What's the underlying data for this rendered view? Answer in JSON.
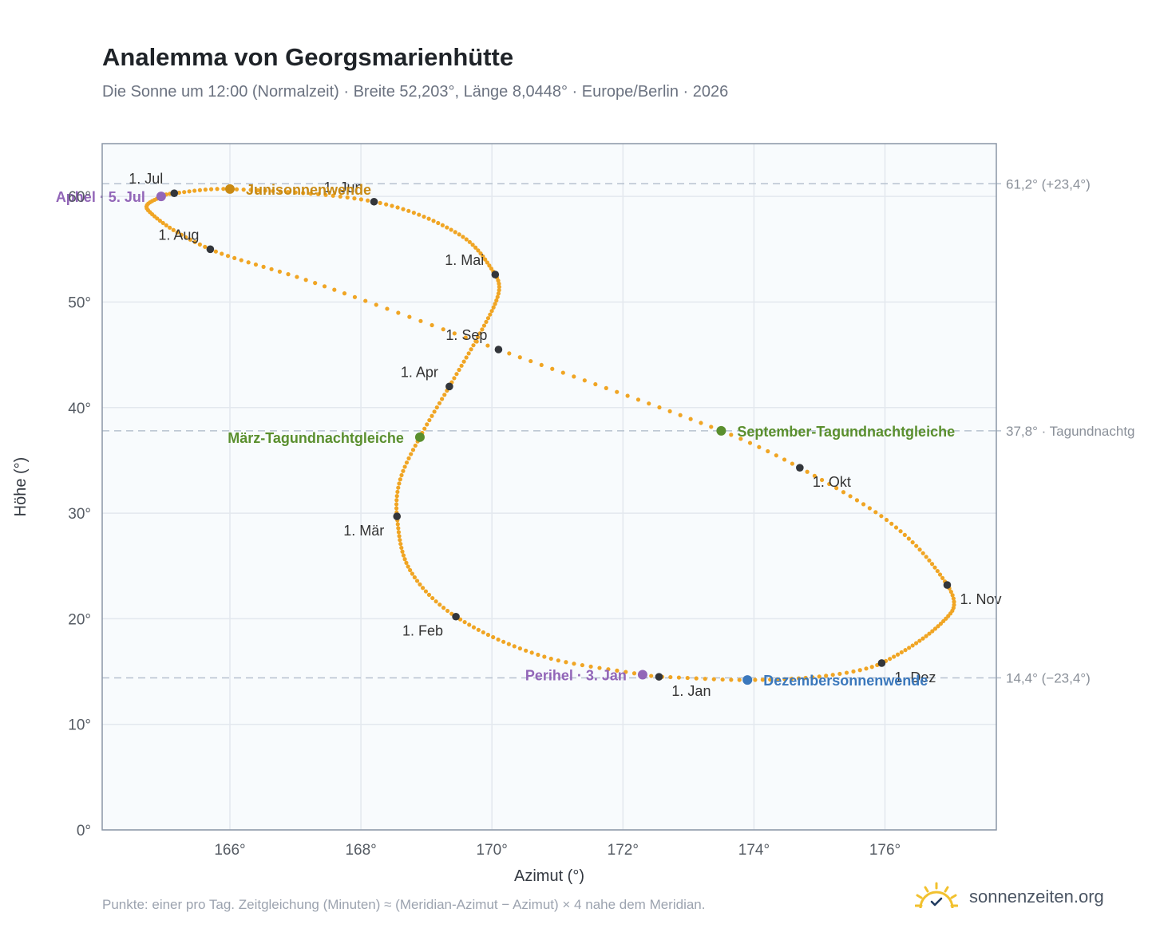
{
  "title": "Analemma von Georgsmarienhütte",
  "subtitle": "Die Sonne um 12:00 (Normalzeit) · Breite 52,203°, Länge 8,0448° · Europe/Berlin · 2026",
  "footnote": "Punkte: einer pro Tag. Zeitgleichung (Minuten) ≈ (Meridian-Azimut − Azimut) × 4 nahe dem Meridian.",
  "brand": {
    "text": "sonnenzeiten.org",
    "icon": "sun-check-logo-icon"
  },
  "colors": {
    "curve": "#f0a524",
    "month_marker": "#33363b",
    "solstice_june": "#c98a14",
    "equinox": "#5a8f2e",
    "solstice_december": "#3b78bc",
    "apsis": "#9266b8",
    "reference_line": "#b7c2cf",
    "plot_background": "#f8fbfd",
    "grid": "#e3e8ee",
    "frame": "#8a96a6"
  },
  "chart_data": {
    "type": "scatter",
    "title": "Analemma von Georgsmarienhütte",
    "xlabel": "Azimut (°)",
    "ylabel": "Höhe (°)",
    "xlim": [
      164.05,
      177.7
    ],
    "ylim": [
      0,
      65
    ],
    "x_ticks": [
      {
        "value": 166,
        "label": "166°"
      },
      {
        "value": 168,
        "label": "168°"
      },
      {
        "value": 170,
        "label": "170°"
      },
      {
        "value": 172,
        "label": "172°"
      },
      {
        "value": 174,
        "label": "174°"
      },
      {
        "value": 176,
        "label": "176°"
      }
    ],
    "y_ticks": [
      {
        "value": 0,
        "label": "0°"
      },
      {
        "value": 10,
        "label": "10°"
      },
      {
        "value": 20,
        "label": "20°"
      },
      {
        "value": 30,
        "label": "30°"
      },
      {
        "value": 40,
        "label": "40°"
      },
      {
        "value": 50,
        "label": "50°"
      },
      {
        "value": 60,
        "label": "60°"
      }
    ],
    "grid": true,
    "series_description": "one point per day of 2026",
    "daily_points_anchors": [
      {
        "date": "2026-01-01",
        "az": 172.55,
        "alt": 14.5
      },
      {
        "date": "2026-01-03",
        "az": 172.3,
        "alt": 14.7
      },
      {
        "date": "2026-01-15",
        "az": 170.8,
        "alt": 16.4
      },
      {
        "date": "2026-02-01",
        "az": 169.45,
        "alt": 20.2
      },
      {
        "date": "2026-02-15",
        "az": 168.75,
        "alt": 24.6
      },
      {
        "date": "2026-03-01",
        "az": 168.55,
        "alt": 29.7
      },
      {
        "date": "2026-03-10",
        "az": 168.6,
        "alt": 33.2
      },
      {
        "date": "2026-03-20",
        "az": 168.9,
        "alt": 37.2
      },
      {
        "date": "2026-04-01",
        "az": 169.35,
        "alt": 42.0
      },
      {
        "date": "2026-04-15",
        "az": 169.85,
        "alt": 47.4
      },
      {
        "date": "2026-04-25",
        "az": 170.1,
        "alt": 50.8
      },
      {
        "date": "2026-05-01",
        "az": 170.05,
        "alt": 52.6
      },
      {
        "date": "2026-05-15",
        "az": 169.5,
        "alt": 56.4
      },
      {
        "date": "2026-06-01",
        "az": 168.2,
        "alt": 59.5
      },
      {
        "date": "2026-06-21",
        "az": 166.0,
        "alt": 60.7
      },
      {
        "date": "2026-07-01",
        "az": 165.15,
        "alt": 60.3
      },
      {
        "date": "2026-07-05",
        "az": 164.95,
        "alt": 60.0
      },
      {
        "date": "2026-07-15",
        "az": 164.75,
        "alt": 58.7
      },
      {
        "date": "2026-08-01",
        "az": 165.7,
        "alt": 55.0
      },
      {
        "date": "2026-08-15",
        "az": 167.3,
        "alt": 51.8
      },
      {
        "date": "2026-09-01",
        "az": 170.1,
        "alt": 45.5
      },
      {
        "date": "2026-09-22",
        "az": 173.5,
        "alt": 37.8
      },
      {
        "date": "2026-10-01",
        "az": 174.7,
        "alt": 34.3
      },
      {
        "date": "2026-10-15",
        "az": 176.1,
        "alt": 29.0
      },
      {
        "date": "2026-11-01",
        "az": 176.95,
        "alt": 23.2
      },
      {
        "date": "2026-11-10",
        "az": 177.0,
        "alt": 20.5
      },
      {
        "date": "2026-12-01",
        "az": 175.95,
        "alt": 15.8
      },
      {
        "date": "2026-12-10",
        "az": 175.1,
        "alt": 14.6
      },
      {
        "date": "2026-12-21",
        "az": 173.9,
        "alt": 14.2
      },
      {
        "date": "2026-12-31",
        "az": 172.6,
        "alt": 14.5
      }
    ],
    "month_markers": [
      {
        "label": "1. Jan",
        "az": 172.55,
        "alt": 14.5,
        "pos": "below-right"
      },
      {
        "label": "1. Feb",
        "az": 169.45,
        "alt": 20.2,
        "pos": "below-left"
      },
      {
        "label": "1. Mär",
        "az": 168.55,
        "alt": 29.7,
        "pos": "below-left"
      },
      {
        "label": "1. Apr",
        "az": 169.35,
        "alt": 42.0,
        "pos": "above-left"
      },
      {
        "label": "1. Mai",
        "az": 170.05,
        "alt": 52.6,
        "pos": "above-left"
      },
      {
        "label": "1. Jun",
        "az": 168.2,
        "alt": 59.5,
        "pos": "above-left"
      },
      {
        "label": "1. Jul",
        "az": 165.15,
        "alt": 60.3,
        "pos": "above-left"
      },
      {
        "label": "1. Aug",
        "az": 165.7,
        "alt": 55.0,
        "pos": "above-left"
      },
      {
        "label": "1. Sep",
        "az": 170.1,
        "alt": 45.5,
        "pos": "above-left"
      },
      {
        "label": "1. Okt",
        "az": 174.7,
        "alt": 34.3,
        "pos": "below-right"
      },
      {
        "label": "1. Nov",
        "az": 176.95,
        "alt": 23.2,
        "pos": "below-right"
      },
      {
        "label": "1. Dez",
        "az": 175.95,
        "alt": 15.8,
        "pos": "below-right"
      }
    ],
    "events": [
      {
        "label": "Junisonnenwende",
        "az": 166.0,
        "alt": 60.7,
        "color_key": "solstice_june",
        "pos": "right"
      },
      {
        "label": "März-Tagundnachtgleiche",
        "az": 168.9,
        "alt": 37.2,
        "color_key": "equinox",
        "pos": "left"
      },
      {
        "label": "September-Tagundnachtgleiche",
        "az": 173.5,
        "alt": 37.8,
        "color_key": "equinox",
        "pos": "right"
      },
      {
        "label": "Dezembersonnenwende",
        "az": 173.9,
        "alt": 14.2,
        "color_key": "solstice_december",
        "pos": "right"
      },
      {
        "label": "Aphel · 5. Jul",
        "az": 164.95,
        "alt": 60.0,
        "color_key": "apsis",
        "pos": "left"
      },
      {
        "label": "Perihel · 3. Jan",
        "az": 172.3,
        "alt": 14.7,
        "color_key": "apsis",
        "pos": "left"
      }
    ],
    "reference_lines": [
      {
        "alt": 61.2,
        "label": "61,2° (+23,4°)"
      },
      {
        "alt": 37.8,
        "label": "37,8° · Tagundnachtg"
      },
      {
        "alt": 14.4,
        "label": "14,4° (−23,4°)"
      }
    ]
  }
}
